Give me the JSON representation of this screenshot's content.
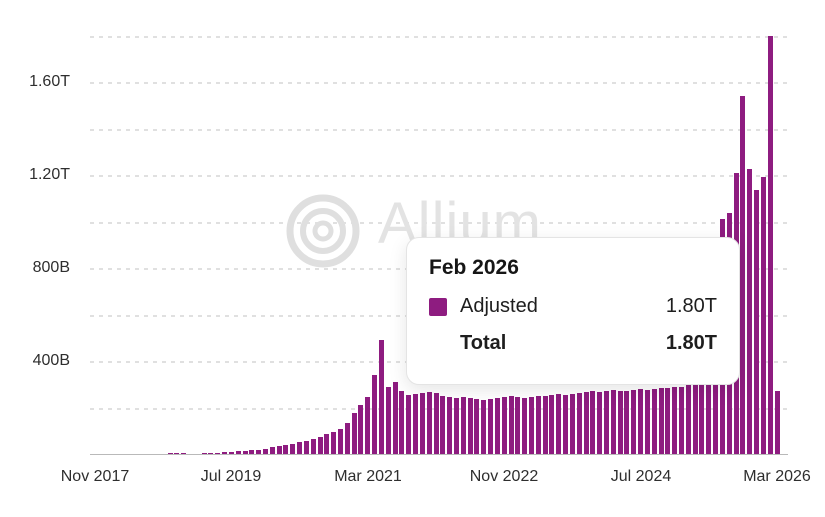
{
  "chart_data": {
    "type": "bar",
    "title": "",
    "description": "Monthly bar chart of adjusted volume, one bar per month from Nov 2017 to Mar 2026 (101 bars); values in billions (B), T = thousands of billions",
    "series": [
      {
        "name": "Adjusted",
        "start_month": "Nov 2017",
        "end_month": "Mar 2026",
        "values_billions": [
          1,
          2,
          2,
          2,
          2,
          2,
          3,
          3,
          3,
          3,
          3,
          4,
          4,
          4,
          3,
          3,
          4,
          5,
          6,
          8,
          10,
          12,
          14,
          16,
          18,
          22,
          30,
          34,
          40,
          45,
          52,
          58,
          66,
          74,
          84,
          95,
          107,
          135,
          175,
          210,
          245,
          340,
          490,
          290,
          310,
          270,
          255,
          258,
          262,
          268,
          262,
          250,
          246,
          242,
          246,
          240,
          236,
          234,
          238,
          240,
          244,
          248,
          246,
          242,
          246,
          250,
          248,
          252,
          256,
          254,
          258,
          262,
          266,
          270,
          268,
          272,
          276,
          272,
          270,
          274,
          278,
          276,
          280,
          284,
          286,
          288,
          290,
          295,
          320,
          380,
          520,
          720,
          1010,
          1035,
          1210,
          1540,
          1225,
          1135,
          1190,
          1800,
          270
        ]
      }
    ],
    "highlighted_month": "Feb 2026",
    "highlighted_value_billions": 1800,
    "xlabel": "",
    "ylabel": "",
    "ylim_billions": [
      0,
      1860
    ],
    "gridline_step_billions": 200,
    "grid": "horizontal dashed",
    "y_tick_labels": [
      "400B",
      "800B",
      "1.20T",
      "1.60T"
    ],
    "y_tick_values_billions": [
      400,
      800,
      1200,
      1600
    ],
    "x_tick_labels": [
      "Nov 2017",
      "Jul 2019",
      "Mar 2021",
      "Nov 2022",
      "Jul 2024",
      "Mar 2026"
    ],
    "x_tick_month_indices": [
      0,
      20,
      40,
      60,
      80,
      100
    ],
    "legend_position": "none"
  },
  "tooltip": {
    "title": "Feb 2026",
    "adjusted_label": "Adjusted",
    "adjusted_value": "1.80T",
    "total_label": "Total",
    "total_value": "1.80T"
  },
  "watermark": {
    "text": "Allium",
    "logo": "concentric-circles-icon"
  },
  "colors": {
    "bar": "#8E1C80",
    "tooltip_swatch": "#8E1C80",
    "gridline": "#e0e0e0",
    "axis_line": "#b9b9b9",
    "axis_text": "#2e2e2e",
    "watermark": "#e3e3e3",
    "background": "#ffffff"
  }
}
